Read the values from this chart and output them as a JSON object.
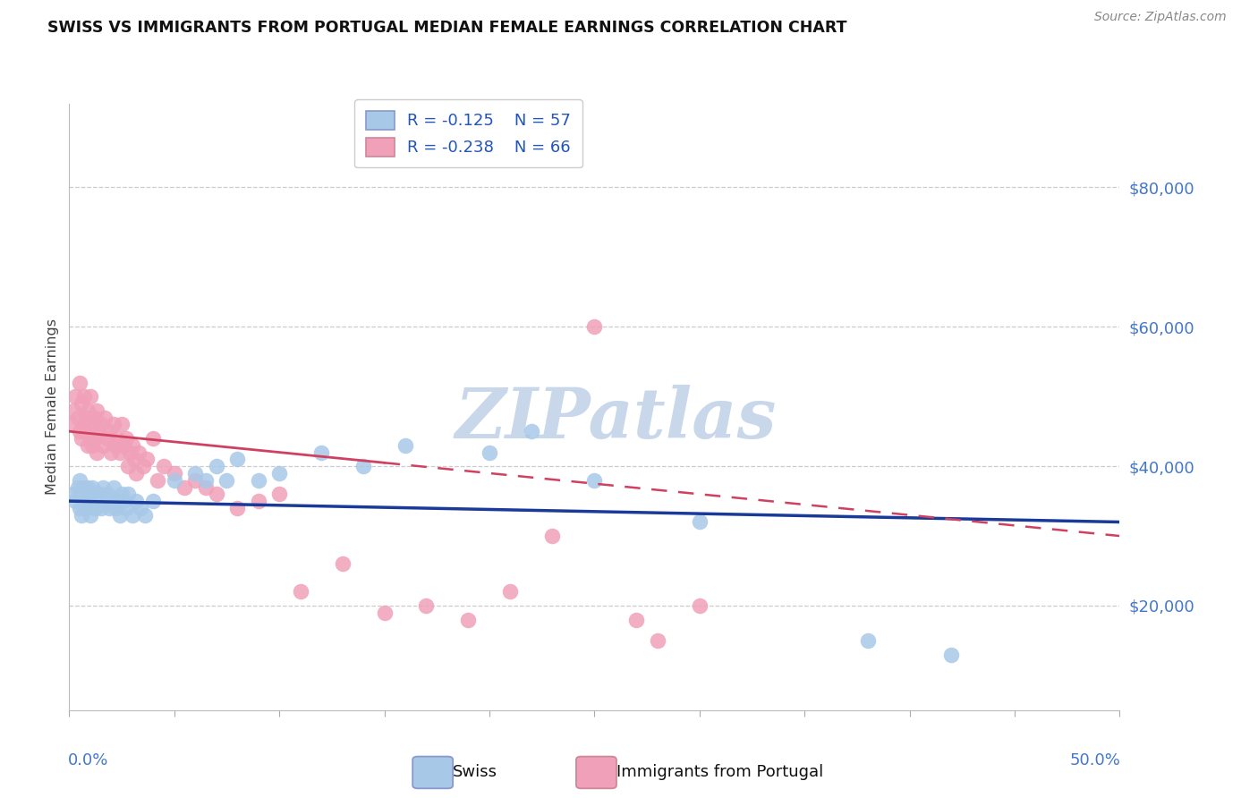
{
  "title": "SWISS VS IMMIGRANTS FROM PORTUGAL MEDIAN FEMALE EARNINGS CORRELATION CHART",
  "source": "Source: ZipAtlas.com",
  "ylabel": "Median Female Earnings",
  "ytick_labels": [
    "$20,000",
    "$40,000",
    "$60,000",
    "$80,000"
  ],
  "ytick_values": [
    20000,
    40000,
    60000,
    80000
  ],
  "ymin": 5000,
  "ymax": 92000,
  "xmin": 0.0,
  "xmax": 0.5,
  "swiss_color": "#a8c8e8",
  "swiss_edge_color": "#7aabe0",
  "portugal_color": "#f0a0b8",
  "portugal_edge_color": "#d870a0",
  "swiss_line_color": "#1a3a9a",
  "portugal_line_color": "#d04060",
  "watermark": "ZIPatlas",
  "watermark_color": "#c8d8ea",
  "legend_r_swiss": "R = -0.125",
  "legend_n_swiss": "N = 57",
  "legend_r_port": "R = -0.238",
  "legend_n_port": "N = 66",
  "legend_label_swiss": "Swiss",
  "legend_label_port": "Immigrants from Portugal",
  "swiss_x": [
    0.002,
    0.003,
    0.004,
    0.005,
    0.005,
    0.006,
    0.006,
    0.007,
    0.007,
    0.008,
    0.008,
    0.009,
    0.009,
    0.01,
    0.01,
    0.011,
    0.011,
    0.012,
    0.012,
    0.013,
    0.014,
    0.015,
    0.016,
    0.017,
    0.018,
    0.019,
    0.02,
    0.021,
    0.022,
    0.023,
    0.024,
    0.025,
    0.026,
    0.027,
    0.028,
    0.03,
    0.032,
    0.034,
    0.036,
    0.04,
    0.05,
    0.06,
    0.065,
    0.07,
    0.075,
    0.08,
    0.09,
    0.1,
    0.12,
    0.14,
    0.16,
    0.2,
    0.22,
    0.25,
    0.3,
    0.38,
    0.42
  ],
  "swiss_y": [
    36000,
    35000,
    37000,
    34000,
    38000,
    36000,
    33000,
    35000,
    37000,
    34000,
    36000,
    35000,
    37000,
    33000,
    36000,
    35000,
    37000,
    34000,
    36000,
    35000,
    36000,
    34000,
    37000,
    35000,
    36000,
    34000,
    35000,
    37000,
    34000,
    35000,
    33000,
    36000,
    35000,
    34000,
    36000,
    33000,
    35000,
    34000,
    33000,
    35000,
    38000,
    39000,
    38000,
    40000,
    38000,
    41000,
    38000,
    39000,
    42000,
    40000,
    43000,
    42000,
    45000,
    38000,
    32000,
    15000,
    13000
  ],
  "portugal_x": [
    0.001,
    0.002,
    0.003,
    0.004,
    0.005,
    0.005,
    0.006,
    0.006,
    0.007,
    0.007,
    0.008,
    0.008,
    0.009,
    0.009,
    0.01,
    0.01,
    0.011,
    0.011,
    0.012,
    0.012,
    0.013,
    0.013,
    0.014,
    0.015,
    0.016,
    0.017,
    0.018,
    0.019,
    0.02,
    0.021,
    0.022,
    0.023,
    0.024,
    0.025,
    0.026,
    0.027,
    0.028,
    0.029,
    0.03,
    0.031,
    0.032,
    0.033,
    0.035,
    0.037,
    0.04,
    0.042,
    0.045,
    0.05,
    0.055,
    0.06,
    0.065,
    0.07,
    0.08,
    0.09,
    0.1,
    0.11,
    0.13,
    0.15,
    0.17,
    0.19,
    0.21,
    0.23,
    0.25,
    0.27,
    0.28,
    0.3
  ],
  "portugal_y": [
    46000,
    48000,
    50000,
    47000,
    45000,
    52000,
    49000,
    44000,
    50000,
    46000,
    47000,
    45000,
    48000,
    43000,
    50000,
    44000,
    46000,
    43000,
    47000,
    44000,
    48000,
    42000,
    45000,
    46000,
    43000,
    47000,
    44000,
    45000,
    42000,
    46000,
    43000,
    44000,
    42000,
    46000,
    43000,
    44000,
    40000,
    42000,
    43000,
    41000,
    39000,
    42000,
    40000,
    41000,
    44000,
    38000,
    40000,
    39000,
    37000,
    38000,
    37000,
    36000,
    34000,
    35000,
    36000,
    22000,
    26000,
    19000,
    20000,
    18000,
    22000,
    30000,
    60000,
    18000,
    15000,
    20000
  ]
}
